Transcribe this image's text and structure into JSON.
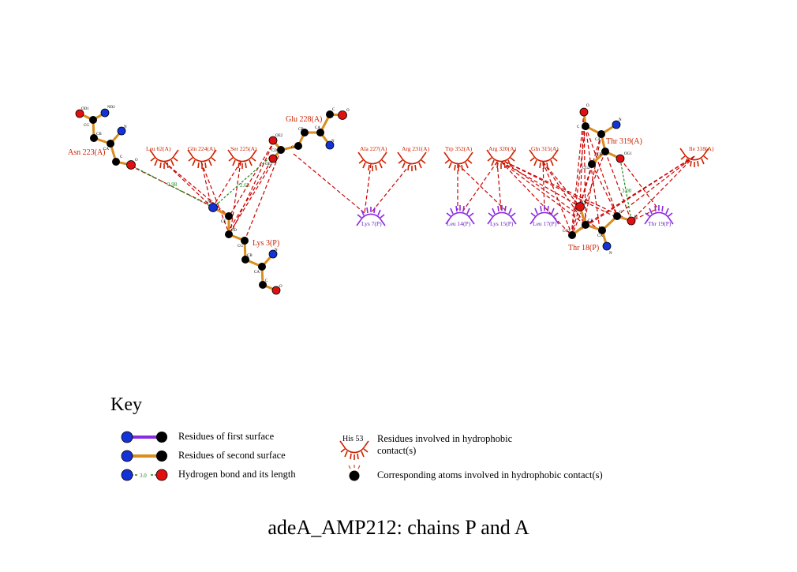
{
  "caption": "adeA_AMP212: chains P and A",
  "key": {
    "title": "Key",
    "first_surface": "Residues of first surface",
    "second_surface": "Residues of second surface",
    "hbond": "Hydrogen bond and its length",
    "hbond_example": "3.0",
    "hydrophobic_example": "His 53",
    "hydrophobic_line1": "Residues involved in hydrophobic",
    "hydrophobic_line2": "contact(s)",
    "hydrophobic_atoms": "Corresponding atoms involved in hydrophobic contact(s)"
  },
  "colors": {
    "chain_a": "#cc2200",
    "chain_p": "#8a2be2",
    "bond": "#d98e1f",
    "hbond": "#1a8a1a",
    "hydrophobic_line": "#cc0000",
    "atom_c": "#000000",
    "atom_n": "#1433d6",
    "atom_o": "#e01010"
  },
  "residues": {
    "asn223": "Asn 223(A)",
    "glu228": "Glu 228(A)",
    "lys3": "Lys 3(P)",
    "thr18": "Thr 18(P)",
    "thr319": "Thr 319(A)"
  },
  "hydrophobic_chain_a": [
    {
      "label": "Leu 62(A)"
    },
    {
      "label": "Gln 224(A)"
    },
    {
      "label": "Ser 225(A)"
    },
    {
      "label": "Ala 227(A)"
    },
    {
      "label": "Arg 231(A)"
    },
    {
      "label": "Trp 352(A)"
    },
    {
      "label": "Arg 320(A)"
    },
    {
      "label": "Gln 315(A)"
    },
    {
      "label": "Ile 318(A)"
    }
  ],
  "hydrophobic_chain_p": [
    {
      "label": "Lys 7(P)"
    },
    {
      "label": "Leu 14(P)"
    },
    {
      "label": "Lys 15(P)"
    },
    {
      "label": "Leu 17(P)"
    },
    {
      "label": "Thr 19(P)"
    }
  ],
  "hbonds": [
    {
      "length": "2.98"
    },
    {
      "length": "2.65"
    },
    {
      "length": "3.00"
    }
  ],
  "atom_labels": {
    "asn_od1": "OD1",
    "asn_nd2": "ND2",
    "asn_cg": "CG",
    "asn_cb": "CB",
    "asn_ca": "CA",
    "asn_n": "N",
    "asn_c": "C",
    "asn_o": "O",
    "glu_c": "C",
    "glu_o": "O",
    "glu_ca": "CA",
    "glu_n": "N",
    "glu_cb": "CB",
    "glu_cg": "CG",
    "glu_cd": "CD",
    "glu_oe2": "OE2",
    "glu_oe1": "OE1",
    "lys_nz": "NZ",
    "lys_ce": "CE",
    "lys_cd": "CD",
    "lys_cg": "CG",
    "lys_cb": "CB",
    "lys_ca": "CA",
    "lys_n": "N",
    "lys_c": "C",
    "lys_o": "O",
    "thr319_o": "O",
    "thr319_c": "C",
    "thr319_n": "N",
    "thr319_ca": "CA",
    "thr319_cb": "CB",
    "thr319_og1": "OG1",
    "thr319_cg2": "CG2",
    "thr18_og1": "OG1",
    "thr18_cb": "CB",
    "thr18_ca": "CA",
    "thr18_cg2": "CG2",
    "thr18_c": "C",
    "thr18_o": "O",
    "thr18_n": "N"
  }
}
